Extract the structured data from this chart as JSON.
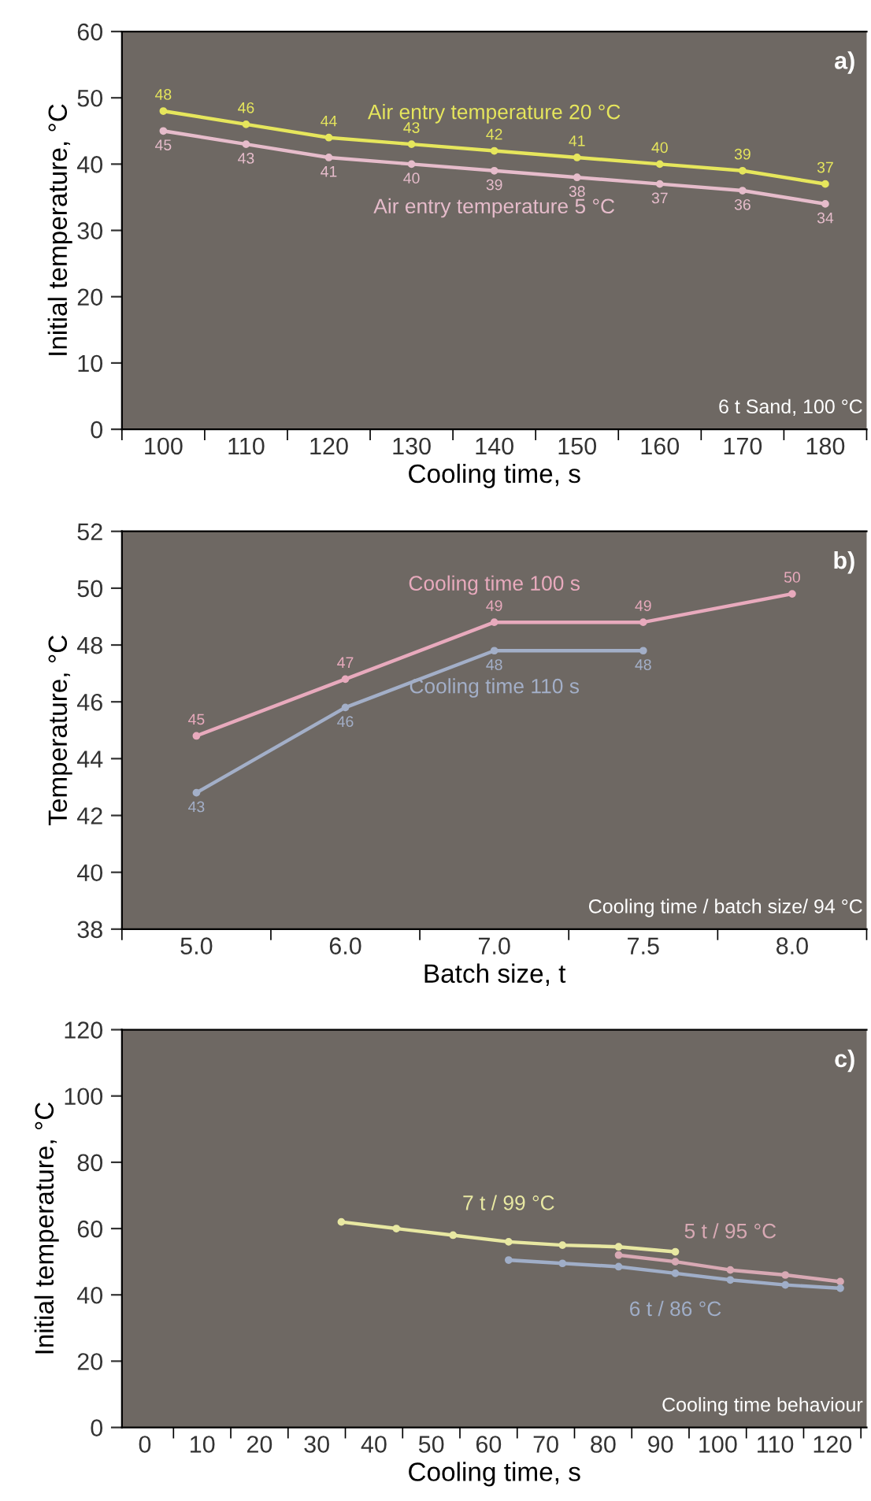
{
  "chart_data": [
    {
      "type": "line",
      "xlabel": "Cooling time, s",
      "ylabel": "Initial temperature, °C",
      "categories": [
        "100",
        "110",
        "120",
        "130",
        "140",
        "150",
        "160",
        "170",
        "180"
      ],
      "ylim": [
        0,
        60
      ],
      "yticks": [
        0,
        10,
        20,
        30,
        40,
        50,
        60
      ],
      "marker": "circle",
      "data_labels": true,
      "annotations": [
        "a)",
        "6 t Sand, 100 °C"
      ],
      "series": [
        {
          "name": "Air entry temperature 20 °C",
          "color": "#e6e65c",
          "values": [
            48,
            46,
            44,
            43,
            42,
            41,
            40,
            39,
            37
          ]
        },
        {
          "name": "Air entry temperature 5 °C",
          "color": "#e6bccb",
          "values": [
            45,
            43,
            41,
            40,
            39,
            38,
            37,
            36,
            34
          ]
        }
      ]
    },
    {
      "type": "line",
      "xlabel": "Batch size, t",
      "ylabel": "Temperature, °C",
      "categories": [
        "5.0",
        "6.0",
        "7.0",
        "7.5",
        "8.0"
      ],
      "ylim": [
        38,
        52
      ],
      "yticks": [
        38,
        40,
        42,
        44,
        46,
        48,
        50,
        52
      ],
      "marker": "circle",
      "annotations": [
        "b)",
        "Cooling time / batch size/ 94 °C"
      ],
      "series": [
        {
          "name": "Cooling time 100 s",
          "color": "#e8aabd",
          "values": [
            44.8,
            46.8,
            48.8,
            48.8,
            49.8
          ],
          "value_labels": [
            "45",
            "47",
            "49",
            "49",
            "50"
          ]
        },
        {
          "name": "Cooling time 110 s",
          "color": "#a3afc8",
          "values": [
            42.8,
            45.8,
            47.8,
            47.8,
            null
          ],
          "value_labels": [
            "43",
            "46",
            "48",
            "48",
            null
          ]
        }
      ]
    },
    {
      "type": "line",
      "xlabel": "Cooling time, s",
      "ylabel": "Initial temperature, °C",
      "xlim": [
        -4,
        126
      ],
      "ylim": [
        0,
        120
      ],
      "xticks": [
        0,
        10,
        20,
        30,
        40,
        50,
        60,
        70,
        80,
        90,
        100,
        110,
        120,
        {
          "value": 5,
          "label": null
        },
        {
          "value": 15,
          "label": null
        },
        {
          "value": 25,
          "label": null
        },
        {
          "value": 35,
          "label": null
        },
        {
          "value": 45,
          "label": null
        },
        {
          "value": 55,
          "label": null
        },
        {
          "value": 65,
          "label": null
        },
        {
          "value": 75,
          "label": null
        },
        {
          "value": 85,
          "label": null
        },
        {
          "value": 95,
          "label": null
        },
        {
          "value": 105,
          "label": null
        },
        {
          "value": 115,
          "label": null
        },
        {
          "value": 125,
          "label": null
        }
      ],
      "yticks": [
        0,
        20,
        40,
        60,
        80,
        100,
        120
      ],
      "marker": "circle",
      "annotations": [
        "c)",
        "Cooling time behaviour"
      ],
      "series": [
        {
          "name": "7 t / 99 °C",
          "color": "#e8e8a2",
          "x": [
            34.3,
            43.9,
            53.8,
            63.5,
            72.9,
            82.7,
            92.6
          ],
          "values": [
            62,
            60,
            58,
            56,
            55,
            54.5,
            53
          ]
        },
        {
          "name": "5 t / 95 °C",
          "color": "#d8a9b4",
          "x": [
            82.7,
            92.6,
            102.2,
            111.8,
            121.4
          ],
          "values": [
            52,
            50,
            47.5,
            46,
            44
          ]
        },
        {
          "name": "6 t / 86 °C",
          "color": "#a0aec8",
          "x": [
            63.5,
            72.9,
            82.7,
            92.6,
            102.2,
            111.8,
            121.4
          ],
          "values": [
            50.5,
            49.5,
            48.5,
            46.5,
            44.5,
            43,
            42
          ]
        }
      ]
    }
  ]
}
